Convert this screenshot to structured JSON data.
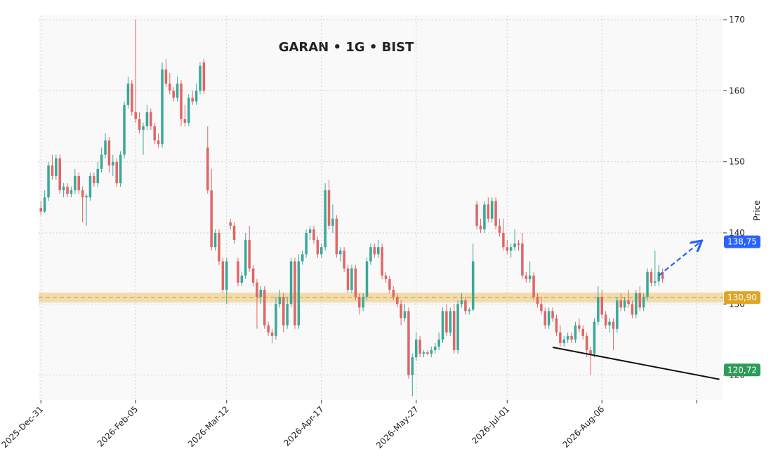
{
  "chart_data": {
    "type": "candlestick",
    "title": "GARAN • 1G • BIST",
    "y_label": "Price",
    "up_color": "#3aa898",
    "down_color": "#e06666",
    "grid": true,
    "ylim": [
      116.5,
      170.6
    ],
    "yticks": [
      120,
      130,
      140,
      150,
      160,
      170
    ],
    "xlim": [
      -0.6,
      180
    ],
    "xticks": [
      {
        "value": 0,
        "label": "2025-Dec-31"
      },
      {
        "value": 25,
        "label": "2026-Feb-05"
      },
      {
        "value": 49,
        "label": "2026-Mar-12"
      },
      {
        "value": 74,
        "label": "2026-Apr-17"
      },
      {
        "value": 99,
        "label": "2026-May-27"
      },
      {
        "value": 123,
        "label": "2026-Jul-01"
      },
      {
        "value": 148,
        "label": "2026-Aug-06"
      },
      {
        "value": 173,
        "label": null
      }
    ],
    "candles": [
      [
        143.5,
        144.5,
        142.5,
        143
      ],
      [
        143,
        146,
        142.8,
        145
      ],
      [
        145,
        150,
        144.5,
        149.5
      ],
      [
        149.5,
        151,
        147.5,
        148
      ],
      [
        148,
        151,
        147.5,
        150.5
      ],
      [
        150.5,
        151,
        145.5,
        146
      ],
      [
        146,
        147,
        145,
        146.5
      ],
      [
        146.5,
        147,
        145,
        145.5
      ],
      [
        145.5,
        146.5,
        145,
        146
      ],
      [
        146,
        149,
        145.5,
        148
      ],
      [
        148,
        148.5,
        145.5,
        146
      ],
      [
        146,
        146.5,
        141.5,
        145
      ],
      [
        145,
        145.5,
        141,
        145.2
      ],
      [
        145,
        148.5,
        144.5,
        148
      ],
      [
        148,
        148.5,
        146.5,
        147
      ],
      [
        147,
        150,
        146.5,
        149
      ],
      [
        149,
        152,
        148.5,
        151
      ],
      [
        151,
        154,
        150.5,
        153
      ],
      [
        153,
        153.5,
        148.5,
        149.5
      ],
      [
        149.5,
        151,
        148,
        150
      ],
      [
        150,
        150.5,
        146.5,
        147
      ],
      [
        147,
        151.5,
        146.5,
        151
      ],
      [
        151,
        158.5,
        150.5,
        158
      ],
      [
        158,
        162,
        157.5,
        161
      ],
      [
        161,
        161.5,
        156.5,
        157
      ],
      [
        157,
        170,
        155.5,
        156
      ],
      [
        156,
        157,
        154,
        154.5
      ],
      [
        154.5,
        155.5,
        151,
        155
      ],
      [
        155,
        158,
        154.5,
        157
      ],
      [
        157,
        157.5,
        154.5,
        155
      ],
      [
        155,
        155.5,
        152.5,
        153
      ],
      [
        153,
        154,
        152,
        152.5
      ],
      [
        152.5,
        164,
        152,
        163
      ],
      [
        163,
        164.5,
        160.5,
        161
      ],
      [
        161,
        162.5,
        159.5,
        160
      ],
      [
        160,
        160.5,
        158.5,
        159
      ],
      [
        159,
        162,
        158.5,
        161
      ],
      [
        161,
        161.5,
        155,
        156
      ],
      [
        156,
        158,
        155,
        155.5
      ],
      [
        155.5,
        159.5,
        155,
        159
      ],
      [
        159,
        160,
        158,
        158.5
      ],
      [
        158.5,
        161,
        158,
        160
      ],
      [
        160,
        164,
        159.5,
        163.5
      ],
      [
        164,
        164.5,
        159.5,
        160
      ],
      [
        152,
        155,
        145.5,
        146
      ],
      [
        146,
        149,
        137.5,
        138
      ],
      [
        138,
        140.5,
        137.5,
        140
      ],
      [
        140,
        140.5,
        135.5,
        136
      ],
      [
        136,
        136.5,
        131.5,
        132
      ],
      [
        132,
        136.5,
        130,
        136
      ],
      [
        141.5,
        142,
        140.5,
        141
      ],
      [
        141,
        141.5,
        138.5,
        139
      ],
      [
        136,
        136.5,
        132.5,
        133
      ],
      [
        133,
        134.5,
        132.5,
        134
      ],
      [
        134,
        140,
        133.5,
        139
      ],
      [
        139,
        141,
        134.5,
        135
      ],
      [
        135,
        135.5,
        132.5,
        133
      ],
      [
        133,
        133.5,
        126.5,
        131
      ],
      [
        131,
        132.5,
        130,
        132
      ],
      [
        132,
        132.5,
        126.5,
        127
      ],
      [
        127,
        127.5,
        125.5,
        126
      ],
      [
        126,
        126.5,
        124.5,
        125.5
      ],
      [
        125.5,
        131,
        125,
        130
      ],
      [
        130,
        132,
        129.5,
        131
      ],
      [
        131,
        131.5,
        126,
        127
      ],
      [
        127,
        131,
        126.5,
        130
      ],
      [
        130,
        136.5,
        129.5,
        136
      ],
      [
        136,
        136.5,
        126.5,
        127
      ],
      [
        127,
        137,
        126.5,
        136
      ],
      [
        136,
        137.5,
        135.5,
        137
      ],
      [
        137,
        140.5,
        136.5,
        140
      ],
      [
        140,
        141,
        139,
        140.5
      ],
      [
        140.5,
        141,
        138.5,
        139
      ],
      [
        139,
        139.5,
        136.5,
        137
      ],
      [
        137,
        138.5,
        136.5,
        138
      ],
      [
        138,
        147,
        137.5,
        146
      ],
      [
        146,
        147.5,
        140.5,
        141
      ],
      [
        141,
        144,
        140,
        142
      ],
      [
        142,
        142.5,
        136.5,
        137
      ],
      [
        137,
        138,
        136,
        137.5
      ],
      [
        137.5,
        138,
        134.5,
        135
      ],
      [
        135,
        135.5,
        131.5,
        132
      ],
      [
        132,
        135.5,
        131.5,
        135
      ],
      [
        135,
        135.5,
        130.5,
        131
      ],
      [
        131,
        131.5,
        128.5,
        129.5
      ],
      [
        129.5,
        131.5,
        129,
        131
      ],
      [
        131,
        136.5,
        130.5,
        136
      ],
      [
        136,
        138.5,
        135.5,
        138
      ],
      [
        138,
        138.5,
        136.5,
        137
      ],
      [
        137,
        139,
        136.5,
        138
      ],
      [
        138,
        138.5,
        133.5,
        134
      ],
      [
        134,
        134.5,
        133,
        133.5
      ],
      [
        133.5,
        134,
        131.5,
        132
      ],
      [
        132,
        132.5,
        130.5,
        131
      ],
      [
        131,
        131.5,
        129.5,
        130
      ],
      [
        130,
        130.5,
        127,
        128
      ],
      [
        128,
        130,
        127.5,
        129
      ],
      [
        129,
        129.5,
        119.5,
        120
      ],
      [
        120,
        123,
        117,
        122.5
      ],
      [
        122.5,
        126,
        122,
        125
      ],
      [
        125,
        125.5,
        122.5,
        123
      ],
      [
        123,
        123.5,
        122.5,
        123.2
      ],
      [
        123.2,
        123.5,
        122.8,
        123
      ],
      [
        123,
        124,
        122.5,
        123.5
      ],
      [
        123.5,
        124.5,
        123,
        124
      ],
      [
        124,
        126,
        123.5,
        125
      ],
      [
        125,
        129.5,
        124.5,
        129
      ],
      [
        129,
        130,
        125.5,
        126
      ],
      [
        126,
        129.5,
        125.5,
        129
      ],
      [
        129,
        130,
        123,
        123.5
      ],
      [
        123.5,
        130.5,
        123,
        130
      ],
      [
        130,
        131.5,
        129.5,
        130.5
      ],
      [
        130.5,
        131,
        128.5,
        129
      ],
      [
        129,
        129.5,
        128.5,
        129.2
      ],
      [
        129.2,
        138.5,
        129,
        136
      ],
      [
        144,
        144.5,
        140.5,
        141
      ],
      [
        141,
        142,
        140,
        140.5
      ],
      [
        140.5,
        144.5,
        140,
        144
      ],
      [
        144,
        145,
        141.5,
        142
      ],
      [
        142,
        145,
        141.5,
        144.5
      ],
      [
        144.5,
        145,
        140.5,
        141
      ],
      [
        141,
        142,
        139.5,
        140
      ],
      [
        140,
        142,
        137.5,
        138
      ],
      [
        138,
        139,
        137,
        137.5
      ],
      [
        137.5,
        138.5,
        136.5,
        138
      ],
      [
        138,
        140.5,
        137.5,
        138.5
      ],
      [
        138.5,
        139,
        137.5,
        138.3
      ],
      [
        138.5,
        140,
        133.5,
        134
      ],
      [
        134,
        134.5,
        133,
        133.5
      ],
      [
        133.5,
        136,
        133,
        134
      ],
      [
        134,
        134.5,
        130.5,
        131
      ],
      [
        131,
        131.5,
        129.5,
        130
      ],
      [
        130,
        131,
        128.5,
        129
      ],
      [
        129,
        129.5,
        126.5,
        127
      ],
      [
        127,
        129.5,
        126.5,
        129
      ],
      [
        129,
        129.5,
        127.5,
        128
      ],
      [
        128,
        128.5,
        125.5,
        126
      ],
      [
        126,
        127,
        124,
        124.5
      ],
      [
        124.5,
        125.5,
        124,
        125
      ],
      [
        125,
        126,
        124.5,
        125.5
      ],
      [
        125.5,
        126,
        124.5,
        125
      ],
      [
        125,
        127.5,
        124.5,
        127
      ],
      [
        127,
        128,
        126,
        126.5
      ],
      [
        126.5,
        127,
        125,
        125.5
      ],
      [
        125.5,
        126,
        122.5,
        123.5
      ],
      [
        123.5,
        124,
        120,
        123
      ],
      [
        123,
        128,
        122.5,
        127.5
      ],
      [
        127.5,
        132.5,
        127,
        131
      ],
      [
        131,
        132,
        128,
        128.5
      ],
      [
        128.5,
        129,
        126.5,
        127
      ],
      [
        127,
        128,
        126,
        127.5
      ],
      [
        127.5,
        128,
        123.5,
        126.5
      ],
      [
        126.5,
        131,
        126,
        130.5
      ],
      [
        130.5,
        131.5,
        129,
        129.5
      ],
      [
        129.5,
        131,
        129,
        130.5
      ],
      [
        130.5,
        132,
        129.5,
        130
      ],
      [
        130,
        130.5,
        128,
        128.5
      ],
      [
        128.5,
        132,
        128,
        131.5
      ],
      [
        131.5,
        132.5,
        129,
        129.5
      ],
      [
        129.5,
        131.5,
        129,
        131
      ],
      [
        131,
        135,
        130.5,
        134.5
      ],
      [
        134.5,
        135,
        132.5,
        133
      ],
      [
        133,
        137.5,
        132.5,
        133.2
      ],
      [
        133.2,
        135.5,
        132.5,
        134.5
      ],
      [
        134.5,
        135,
        133,
        133.5
      ]
    ],
    "support": {
      "value": 130.9,
      "label": "130,90",
      "band": [
        130.2,
        131.6
      ],
      "color": "#e0a526"
    },
    "projection": {
      "x": [
        163,
        174
      ],
      "y": [
        134,
        138.75
      ],
      "value": 138.75,
      "label": "138,75",
      "color": "#2962ff"
    },
    "trend_line": {
      "x": [
        135,
        179
      ],
      "y": [
        123.9,
        119.4
      ],
      "value": 120.72,
      "label": "120,72",
      "color": "#2e9b58"
    }
  }
}
